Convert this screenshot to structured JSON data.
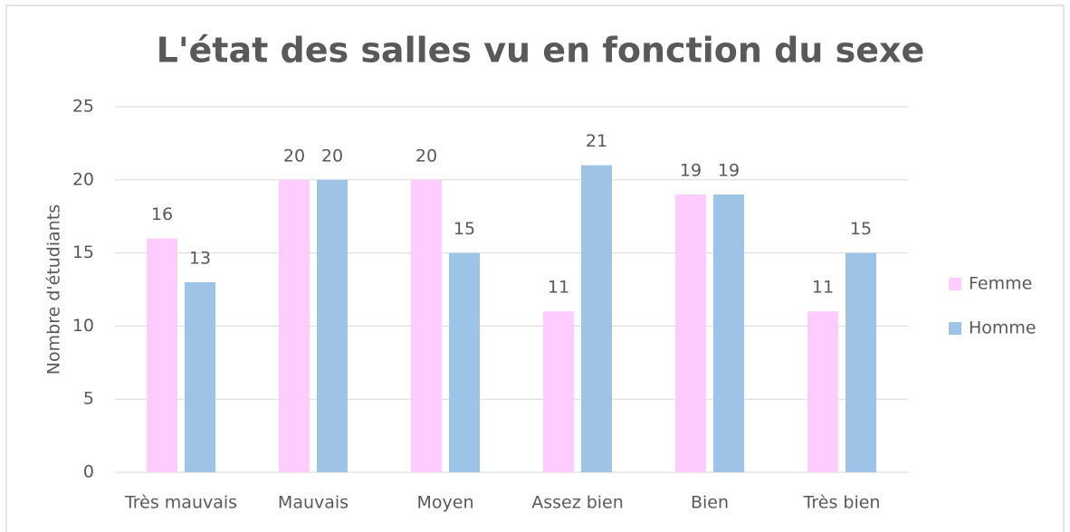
{
  "chart_data": {
    "type": "bar",
    "title": "L'état des salles vu en fonction du sexe",
    "y_label": "Nombre d'étudiants",
    "categories": [
      "Très mauvais",
      "Mauvais",
      "Moyen",
      "Assez bien",
      "Bien",
      "Très bien"
    ],
    "series": [
      {
        "name": "Femme",
        "color": "#ffccff",
        "values": [
          16,
          20,
          20,
          11,
          19,
          11
        ]
      },
      {
        "name": "Homme",
        "color": "#9dc3e6",
        "values": [
          13,
          20,
          15,
          21,
          19,
          15
        ]
      }
    ],
    "ylim": [
      0,
      25
    ],
    "yticks": [
      0,
      5,
      10,
      15,
      20,
      25
    ],
    "grid": true,
    "legend": "right"
  }
}
